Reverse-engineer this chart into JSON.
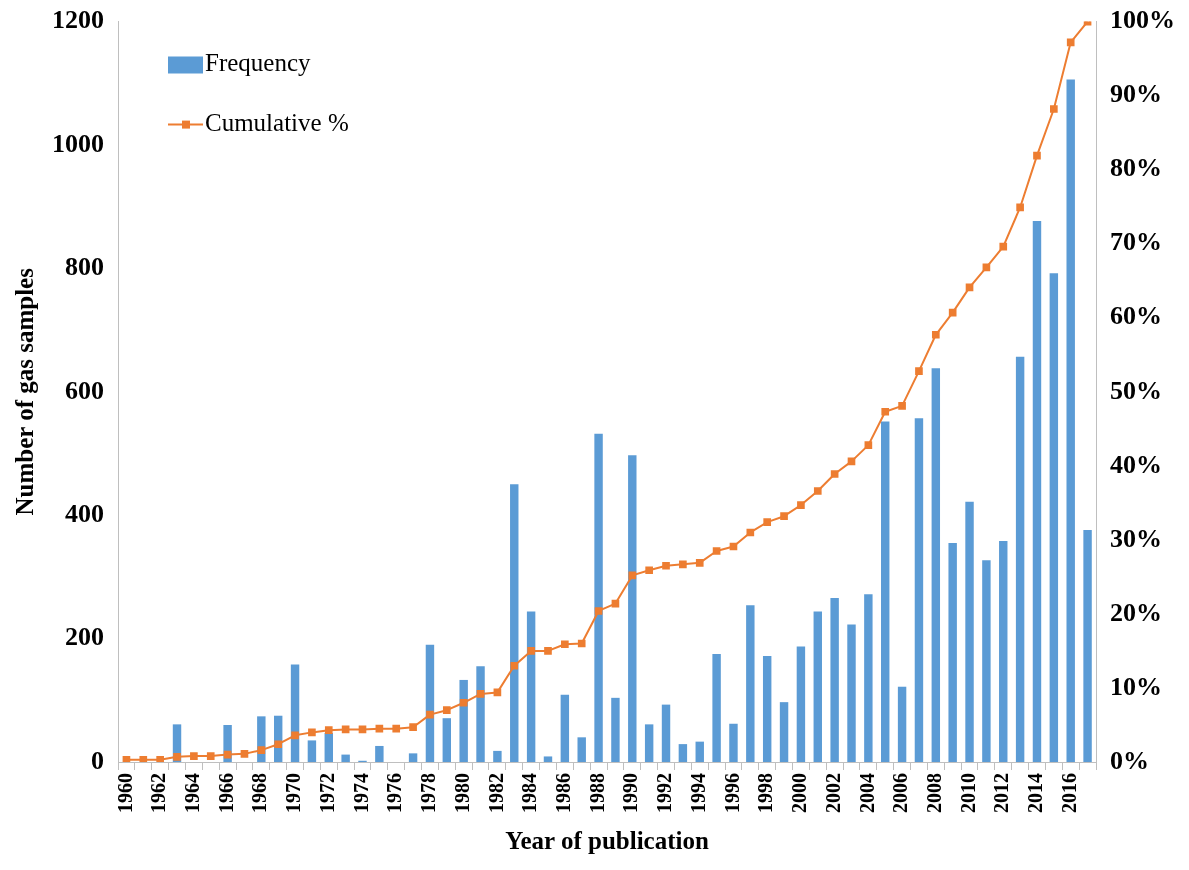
{
  "chart_data": {
    "type": "bar",
    "xlabel": "Year of publication",
    "ylabel": "Number of gas samples",
    "categories": [
      "1960",
      null,
      "1962",
      null,
      "1964",
      null,
      "1966",
      null,
      "1968",
      null,
      "1970",
      null,
      "1972",
      null,
      "1974",
      null,
      "1976",
      null,
      "1978",
      null,
      "1980",
      null,
      "1982",
      null,
      "1984",
      null,
      "1986",
      null,
      "1988",
      null,
      "1990",
      null,
      "1992",
      null,
      "1994",
      null,
      "1996",
      null,
      "1998",
      null,
      "2000",
      null,
      "2002",
      null,
      "2004",
      null,
      "2006",
      null,
      "2008",
      null,
      "2010",
      null,
      "2012",
      null,
      "2014",
      null,
      "2016",
      null
    ],
    "series": [
      {
        "name": "Frequency",
        "color": "#5b9bd5",
        "values": [
          null,
          null,
          null,
          61,
          null,
          null,
          60,
          null,
          74,
          75,
          158,
          35,
          47,
          12,
          2,
          26,
          0,
          14,
          190,
          71,
          133,
          155,
          18,
          450,
          244,
          9,
          109,
          40,
          532,
          104,
          497,
          61,
          93,
          29,
          33,
          175,
          62,
          254,
          172,
          97,
          187,
          244,
          266,
          223,
          272,
          552,
          122,
          557,
          638,
          355,
          422,
          327,
          358,
          657,
          877,
          792,
          1106,
          376
        ]
      },
      {
        "name": "Cumulative %",
        "type": "line",
        "axis": "y2",
        "color": "#ed7d31",
        "marker": "square",
        "values": [
          0.3,
          0.3,
          0.3,
          0.7,
          0.8,
          0.8,
          1,
          1.1,
          1.6,
          2.4,
          3.6,
          4,
          4.3,
          4.4,
          4.4,
          4.5,
          4.5,
          4.7,
          6.4,
          7,
          8,
          9.2,
          9.4,
          13,
          15,
          15,
          15.9,
          16,
          20.4,
          21.4,
          25.2,
          25.9,
          26.5,
          26.7,
          26.9,
          28.5,
          29.1,
          31,
          32.4,
          33.2,
          34.7,
          36.6,
          38.9,
          40.6,
          42.8,
          47.3,
          48.1,
          52.8,
          57.7,
          60.7,
          64.1,
          66.8,
          69.6,
          74.9,
          81.9,
          88.2,
          97.2,
          100
        ]
      }
    ],
    "ylim": [
      0,
      1200
    ],
    "yticks": [
      0,
      200,
      400,
      600,
      800,
      1000,
      1200
    ],
    "y2lim": [
      0,
      100
    ],
    "y2ticks": [
      {
        "value": 0,
        "label": "0%"
      },
      {
        "value": 10,
        "label": "10%"
      },
      {
        "value": 20,
        "label": "20%"
      },
      {
        "value": 30,
        "label": "30%"
      },
      {
        "value": 40,
        "label": "40%"
      },
      {
        "value": 50,
        "label": "50%"
      },
      {
        "value": 60,
        "label": "60%"
      },
      {
        "value": 70,
        "label": "70%"
      },
      {
        "value": 80,
        "label": "80%"
      },
      {
        "value": 90,
        "label": "90%"
      },
      {
        "value": 100,
        "label": "100%"
      }
    ],
    "grid": false,
    "legend": "top left"
  }
}
